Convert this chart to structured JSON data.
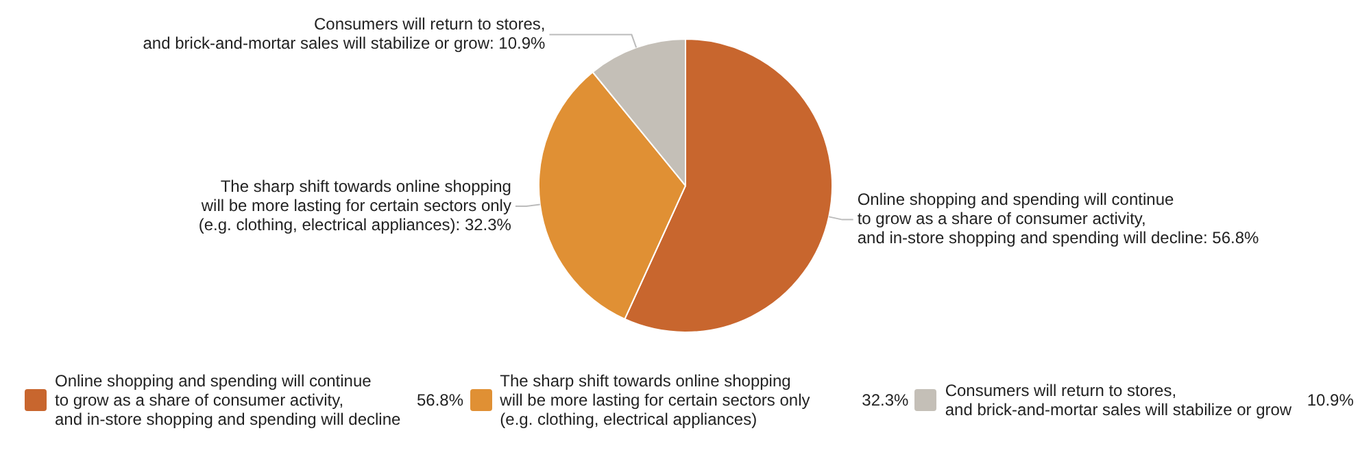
{
  "chart_data": {
    "type": "pie",
    "categories": [
      "Online shopping and spending will continue\nto grow as a share of consumer activity,\nand in-store shopping and spending will decline",
      "The sharp shift towards online shopping\nwill be more lasting for certain sectors only\n(e.g. clothing, electrical appliances)",
      "Consumers will return to stores,\nand brick-and-mortar sales will stabilize or grow"
    ],
    "values": [
      56.8,
      32.3,
      10.9
    ],
    "value_labels": [
      "56.8%",
      "32.3%",
      "10.9%"
    ],
    "colors": [
      "#c8662e",
      "#e09034",
      "#c4bfb7"
    ],
    "annotations": [
      "Online shopping and spending will continue\nto grow as a share of consumer activity,\nand in-store shopping and spending will decline: 56.8%",
      "The sharp shift towards online shopping\nwill be more lasting for certain sectors only\n(e.g. clothing, electrical appliances): 32.3%",
      "Consumers will return to stores,\nand brick-and-mortar sales will stabilize or grow: 10.9%"
    ],
    "legend": "bottom"
  }
}
